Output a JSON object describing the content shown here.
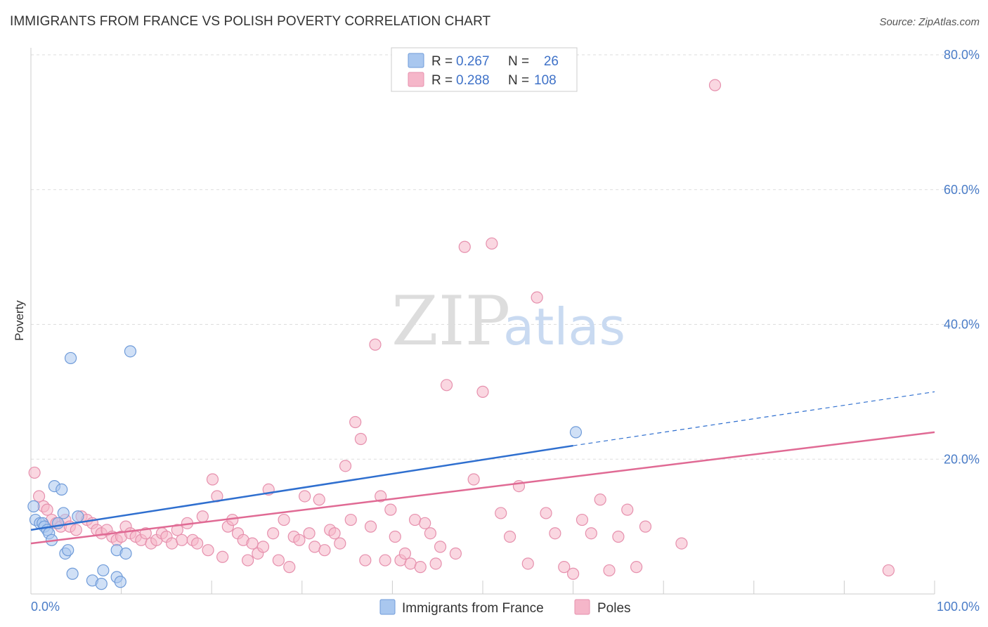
{
  "header": {
    "title": "IMMIGRANTS FROM FRANCE VS POLISH POVERTY CORRELATION CHART",
    "source": "Source: ZipAtlas.com"
  },
  "watermark": {
    "zip": "ZIP",
    "atlas": "atlas"
  },
  "legend": {
    "rows": [
      {
        "r_label": "R =",
        "r_value": "0.267",
        "n_label": "N =",
        "n_value": "26",
        "color": "#a9c7ef"
      },
      {
        "r_label": "R =",
        "r_value": "0.288",
        "n_label": "N =",
        "n_value": "108",
        "color": "#f5b6c9"
      }
    ]
  },
  "colors": {
    "blue_fill": "#a9c7ef",
    "blue_stroke": "#6f9bd9",
    "blue_line": "#2f6fcf",
    "pink_fill": "#f5b6c9",
    "pink_stroke": "#e690ad",
    "pink_line": "#e06a94",
    "grid": "#dddddd",
    "axis_text": "#4a7cc7"
  },
  "chart_data": {
    "type": "scatter",
    "title": "IMMIGRANTS FROM FRANCE VS POLISH POVERTY CORRELATION CHART",
    "xlabel": "",
    "ylabel": "Poverty",
    "xlim": [
      0,
      100
    ],
    "ylim": [
      0,
      80
    ],
    "x_tick_labels": [
      "0.0%",
      "100.0%"
    ],
    "y_ticks": [
      20,
      40,
      60,
      80
    ],
    "y_tick_labels": [
      "20.0%",
      "40.0%",
      "60.0%",
      "80.0%"
    ],
    "legend_position": "bottom",
    "series": [
      {
        "name": "Immigrants from France",
        "r": 0.267,
        "n": 26,
        "trend": {
          "x_start": 0,
          "y_start": 9.5,
          "x_solid_end": 60,
          "y_solid_end": 22.0,
          "x_end": 100,
          "y_end": 30.0
        },
        "points": [
          [
            0.3,
            13.0
          ],
          [
            0.5,
            11.0
          ],
          [
            1.0,
            10.5
          ],
          [
            1.3,
            10.5
          ],
          [
            1.5,
            10.0
          ],
          [
            1.8,
            9.5
          ],
          [
            2.0,
            9.0
          ],
          [
            2.3,
            8.0
          ],
          [
            2.6,
            16.0
          ],
          [
            3.0,
            10.5
          ],
          [
            3.4,
            15.5
          ],
          [
            3.6,
            12.0
          ],
          [
            3.8,
            6.0
          ],
          [
            4.1,
            6.5
          ],
          [
            4.4,
            35.0
          ],
          [
            4.6,
            3.0
          ],
          [
            5.2,
            11.5
          ],
          [
            6.8,
            2.0
          ],
          [
            7.8,
            1.5
          ],
          [
            8.0,
            3.5
          ],
          [
            9.5,
            6.5
          ],
          [
            9.5,
            2.5
          ],
          [
            9.9,
            1.8
          ],
          [
            10.5,
            6.0
          ],
          [
            11.0,
            36.0
          ],
          [
            60.3,
            24.0
          ]
        ]
      },
      {
        "name": "Poles",
        "r": 0.288,
        "n": 108,
        "trend": {
          "x_start": 0,
          "y_start": 7.5,
          "x_end": 100,
          "y_end": 24.0
        },
        "points": [
          [
            0.4,
            18.0
          ],
          [
            0.9,
            14.5
          ],
          [
            1.4,
            13.0
          ],
          [
            1.8,
            12.5
          ],
          [
            2.3,
            11.0
          ],
          [
            2.8,
            10.5
          ],
          [
            3.3,
            10.0
          ],
          [
            3.8,
            11.0
          ],
          [
            4.3,
            10.0
          ],
          [
            5.0,
            9.5
          ],
          [
            5.6,
            11.5
          ],
          [
            6.2,
            11.0
          ],
          [
            6.8,
            10.5
          ],
          [
            7.3,
            9.5
          ],
          [
            7.8,
            9.0
          ],
          [
            8.4,
            9.5
          ],
          [
            9.0,
            8.5
          ],
          [
            9.5,
            8.0
          ],
          [
            10.0,
            8.5
          ],
          [
            10.5,
            10.0
          ],
          [
            11.0,
            9.0
          ],
          [
            11.6,
            8.5
          ],
          [
            12.2,
            8.0
          ],
          [
            12.7,
            9.0
          ],
          [
            13.3,
            7.5
          ],
          [
            13.9,
            8.0
          ],
          [
            14.5,
            9.0
          ],
          [
            15.0,
            8.5
          ],
          [
            15.6,
            7.5
          ],
          [
            16.2,
            9.5
          ],
          [
            16.7,
            8.0
          ],
          [
            17.3,
            10.5
          ],
          [
            17.9,
            8.0
          ],
          [
            18.4,
            7.5
          ],
          [
            19.0,
            11.5
          ],
          [
            19.6,
            6.5
          ],
          [
            20.1,
            17.0
          ],
          [
            20.6,
            14.5
          ],
          [
            21.2,
            5.5
          ],
          [
            21.8,
            10.0
          ],
          [
            22.3,
            11.0
          ],
          [
            22.9,
            9.0
          ],
          [
            23.5,
            8.0
          ],
          [
            24.0,
            5.0
          ],
          [
            24.5,
            7.5
          ],
          [
            25.1,
            6.0
          ],
          [
            25.7,
            7.0
          ],
          [
            26.3,
            15.5
          ],
          [
            26.8,
            9.0
          ],
          [
            27.4,
            5.0
          ],
          [
            28.0,
            11.0
          ],
          [
            28.6,
            4.0
          ],
          [
            29.1,
            8.5
          ],
          [
            29.7,
            8.0
          ],
          [
            30.3,
            14.5
          ],
          [
            30.8,
            9.0
          ],
          [
            31.4,
            7.0
          ],
          [
            31.9,
            14.0
          ],
          [
            32.5,
            6.5
          ],
          [
            33.1,
            9.5
          ],
          [
            33.6,
            9.0
          ],
          [
            34.2,
            7.5
          ],
          [
            34.8,
            19.0
          ],
          [
            35.4,
            11.0
          ],
          [
            35.9,
            25.5
          ],
          [
            36.5,
            23.0
          ],
          [
            37.0,
            5.0
          ],
          [
            37.6,
            10.0
          ],
          [
            38.1,
            37.0
          ],
          [
            38.7,
            14.5
          ],
          [
            39.2,
            5.0
          ],
          [
            39.8,
            12.5
          ],
          [
            40.3,
            8.5
          ],
          [
            40.9,
            5.0
          ],
          [
            41.4,
            6.0
          ],
          [
            42.0,
            4.5
          ],
          [
            42.5,
            11.0
          ],
          [
            43.1,
            4.0
          ],
          [
            43.6,
            10.5
          ],
          [
            44.2,
            9.0
          ],
          [
            44.8,
            4.5
          ],
          [
            45.3,
            7.0
          ],
          [
            46.0,
            31.0
          ],
          [
            47.0,
            6.0
          ],
          [
            48.0,
            51.5
          ],
          [
            49.0,
            17.0
          ],
          [
            50.0,
            30.0
          ],
          [
            51.0,
            52.0
          ],
          [
            52.0,
            12.0
          ],
          [
            53.0,
            8.5
          ],
          [
            54.0,
            16.0
          ],
          [
            55.0,
            4.5
          ],
          [
            56.0,
            44.0
          ],
          [
            57.0,
            12.0
          ],
          [
            58.0,
            9.0
          ],
          [
            59.0,
            4.0
          ],
          [
            60.0,
            3.0
          ],
          [
            61.0,
            11.0
          ],
          [
            62.0,
            9.0
          ],
          [
            63.0,
            14.0
          ],
          [
            64.0,
            3.5
          ],
          [
            65.0,
            8.5
          ],
          [
            66.0,
            12.5
          ],
          [
            67.0,
            4.0
          ],
          [
            68.0,
            10.0
          ],
          [
            72.0,
            7.5
          ],
          [
            75.7,
            75.5
          ],
          [
            94.9,
            3.5
          ]
        ]
      }
    ]
  }
}
